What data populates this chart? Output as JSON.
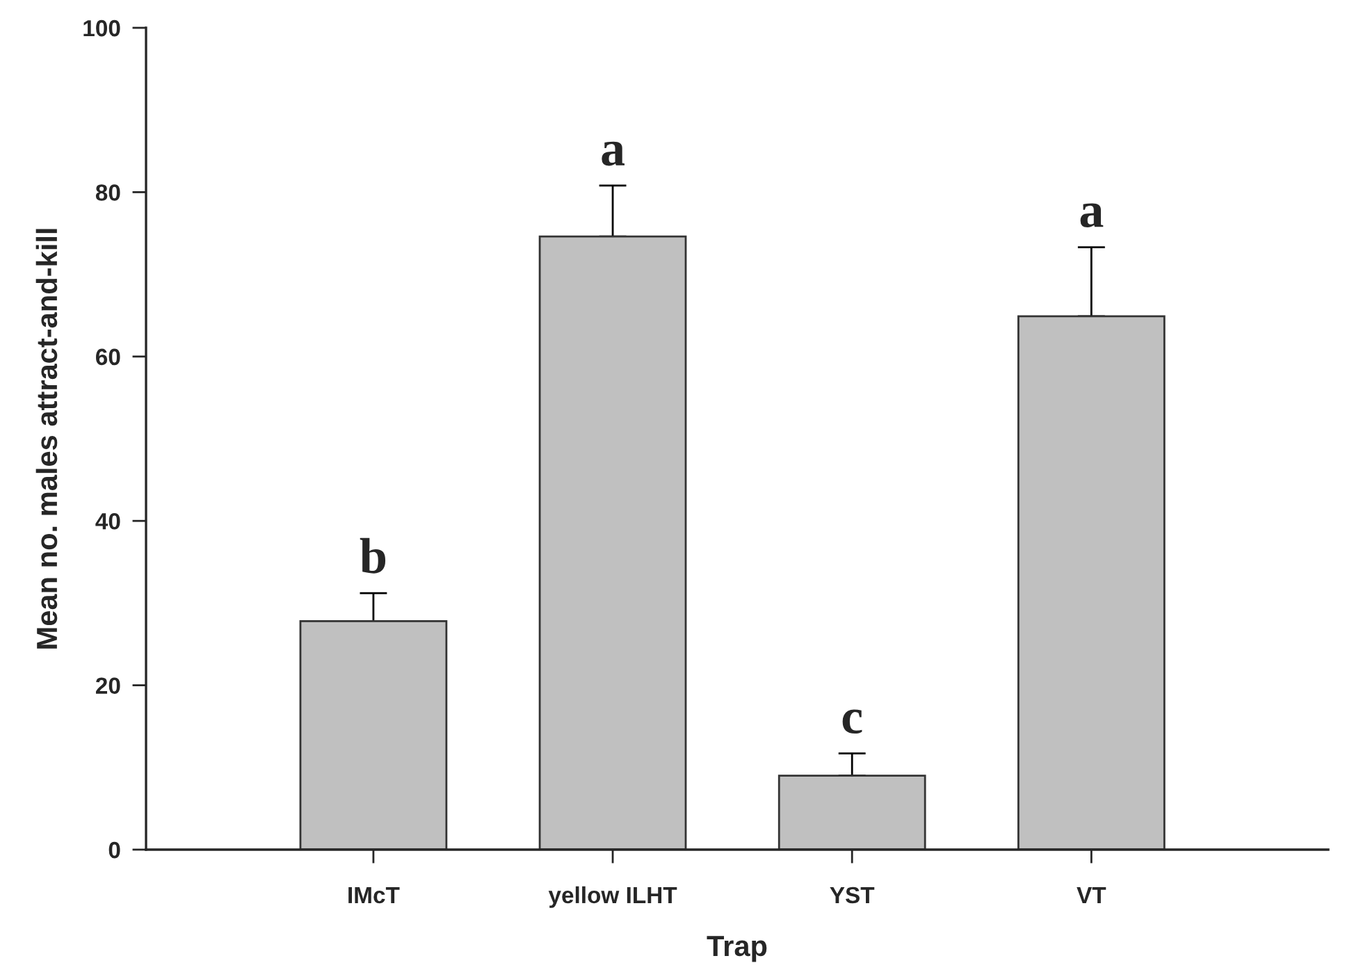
{
  "chart_data": {
    "type": "bar",
    "xlabel": "Trap",
    "ylabel": "Mean no. males attract-and-kill",
    "categories": [
      "IMcT",
      "yellow ILHT",
      "YST",
      "VT"
    ],
    "values": [
      27.8,
      74.6,
      9.0,
      64.9
    ],
    "errors": [
      3.4,
      6.2,
      2.7,
      8.4
    ],
    "color": "#c0c0c0",
    "ylim": [
      0,
      100
    ],
    "yticks": [
      0,
      20,
      40,
      60,
      80,
      100
    ],
    "grid": false,
    "annotations": [
      "b",
      "a",
      "c",
      "a"
    ]
  }
}
